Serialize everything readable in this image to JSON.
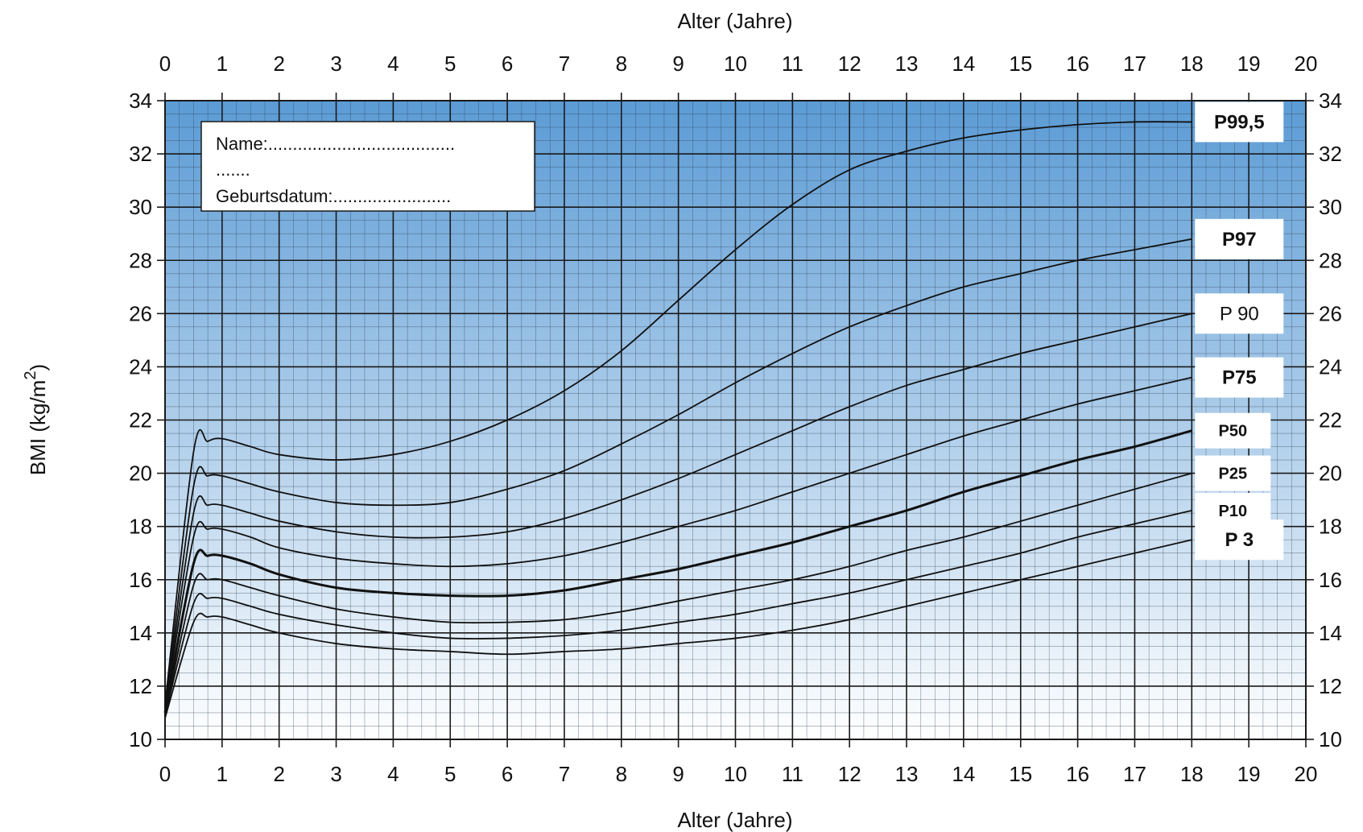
{
  "chart_data": {
    "type": "line",
    "title": "",
    "xlabel_top": "Alter (Jahre)",
    "xlabel_bottom": "Alter (Jahre)",
    "ylabel": "BMI (kg/m",
    "ylabel_sup": "2",
    "ylabel_close": ")",
    "xlim": [
      0,
      20
    ],
    "ylim": [
      10,
      34
    ],
    "x_ticks": [
      "0",
      "1",
      "2",
      "3",
      "4",
      "5",
      "6",
      "7",
      "8",
      "9",
      "10",
      "11",
      "12",
      "13",
      "14",
      "15",
      "16",
      "17",
      "18",
      "19",
      "20"
    ],
    "y_ticks": [
      "10",
      "12",
      "14",
      "16",
      "18",
      "20",
      "22",
      "24",
      "26",
      "28",
      "30",
      "32",
      "34"
    ],
    "grid": true,
    "background_gradient": [
      "#5b9bd5",
      "#ffffff"
    ],
    "name_box": {
      "line1": "Name:......................................",
      "line2": ".......",
      "line3": "Geburtsdatum:........................"
    },
    "series": [
      {
        "name": "P99,5",
        "bold": true,
        "label_size": "large",
        "x": [
          0,
          0.5,
          0.75,
          1,
          1.5,
          2,
          3,
          4,
          5,
          6,
          7,
          8,
          9,
          10,
          11,
          12,
          13,
          14,
          15,
          16,
          17,
          18
        ],
        "y": [
          11.3,
          20.8,
          21.2,
          21.3,
          21.0,
          20.7,
          20.5,
          20.7,
          21.2,
          22.0,
          23.1,
          24.6,
          26.5,
          28.4,
          30.1,
          31.4,
          32.1,
          32.6,
          32.9,
          33.1,
          33.2,
          33.2
        ]
      },
      {
        "name": "P97",
        "bold": true,
        "label_size": "large",
        "x": [
          0,
          0.5,
          0.75,
          1,
          1.5,
          2,
          3,
          4,
          5,
          6,
          7,
          8,
          9,
          10,
          11,
          12,
          13,
          14,
          15,
          16,
          17,
          18
        ],
        "y": [
          11.2,
          19.5,
          19.9,
          19.9,
          19.6,
          19.3,
          18.9,
          18.8,
          18.9,
          19.4,
          20.1,
          21.1,
          22.2,
          23.4,
          24.5,
          25.5,
          26.3,
          27.0,
          27.5,
          28.0,
          28.4,
          28.8
        ]
      },
      {
        "name": "P 90",
        "bold": false,
        "label_size": "large",
        "x": [
          0,
          0.5,
          0.75,
          1,
          1.5,
          2,
          3,
          4,
          5,
          6,
          7,
          8,
          9,
          10,
          11,
          12,
          13,
          14,
          15,
          16,
          17,
          18
        ],
        "y": [
          11.1,
          18.5,
          18.8,
          18.8,
          18.5,
          18.2,
          17.8,
          17.6,
          17.6,
          17.8,
          18.3,
          19.0,
          19.8,
          20.7,
          21.6,
          22.5,
          23.3,
          23.9,
          24.5,
          25.0,
          25.5,
          26.0
        ]
      },
      {
        "name": "P75",
        "bold": true,
        "label_size": "large",
        "x": [
          0,
          0.5,
          0.75,
          1,
          1.5,
          2,
          3,
          4,
          5,
          6,
          7,
          8,
          9,
          10,
          11,
          12,
          13,
          14,
          15,
          16,
          17,
          18
        ],
        "y": [
          11.1,
          17.6,
          17.9,
          17.9,
          17.6,
          17.2,
          16.8,
          16.6,
          16.5,
          16.6,
          16.9,
          17.4,
          18.0,
          18.6,
          19.3,
          20.0,
          20.7,
          21.4,
          22.0,
          22.6,
          23.1,
          23.6
        ]
      },
      {
        "name": "P50",
        "bold": true,
        "label_size": "small",
        "x": [
          0,
          0.5,
          0.75,
          1,
          1.5,
          2,
          3,
          4,
          5,
          6,
          7,
          8,
          9,
          10,
          11,
          12,
          13,
          14,
          15,
          16,
          17,
          18
        ],
        "y": [
          11.0,
          16.6,
          16.9,
          16.9,
          16.6,
          16.2,
          15.7,
          15.5,
          15.4,
          15.4,
          15.6,
          16.0,
          16.4,
          16.9,
          17.4,
          18.0,
          18.6,
          19.3,
          19.9,
          20.5,
          21.0,
          21.6
        ]
      },
      {
        "name": "P25",
        "bold": true,
        "label_size": "small",
        "x": [
          0,
          0.5,
          0.75,
          1,
          1.5,
          2,
          3,
          4,
          5,
          6,
          7,
          8,
          9,
          10,
          11,
          12,
          13,
          14,
          15,
          16,
          17,
          18
        ],
        "y": [
          10.9,
          15.8,
          16.0,
          16.0,
          15.7,
          15.4,
          14.9,
          14.6,
          14.4,
          14.4,
          14.5,
          14.8,
          15.2,
          15.6,
          16.0,
          16.5,
          17.1,
          17.6,
          18.2,
          18.8,
          19.4,
          20.0
        ]
      },
      {
        "name": "P10",
        "bold": true,
        "label_size": "small",
        "x": [
          0,
          0.5,
          0.75,
          1,
          1.5,
          2,
          3,
          4,
          5,
          6,
          7,
          8,
          9,
          10,
          11,
          12,
          13,
          14,
          15,
          16,
          17,
          18
        ],
        "y": [
          10.9,
          15.1,
          15.3,
          15.3,
          15.0,
          14.7,
          14.3,
          14.0,
          13.8,
          13.8,
          13.9,
          14.1,
          14.4,
          14.7,
          15.1,
          15.5,
          16.0,
          16.5,
          17.0,
          17.6,
          18.1,
          18.6
        ]
      },
      {
        "name": "P 3",
        "bold": true,
        "label_size": "large",
        "x": [
          0,
          0.5,
          0.75,
          1,
          1.5,
          2,
          3,
          4,
          5,
          6,
          7,
          8,
          9,
          10,
          11,
          12,
          13,
          14,
          15,
          16,
          17,
          18
        ],
        "y": [
          10.8,
          14.4,
          14.6,
          14.6,
          14.3,
          14.0,
          13.6,
          13.4,
          13.3,
          13.2,
          13.3,
          13.4,
          13.6,
          13.8,
          14.1,
          14.5,
          15.0,
          15.5,
          16.0,
          16.5,
          17.0,
          17.5
        ]
      }
    ]
  }
}
